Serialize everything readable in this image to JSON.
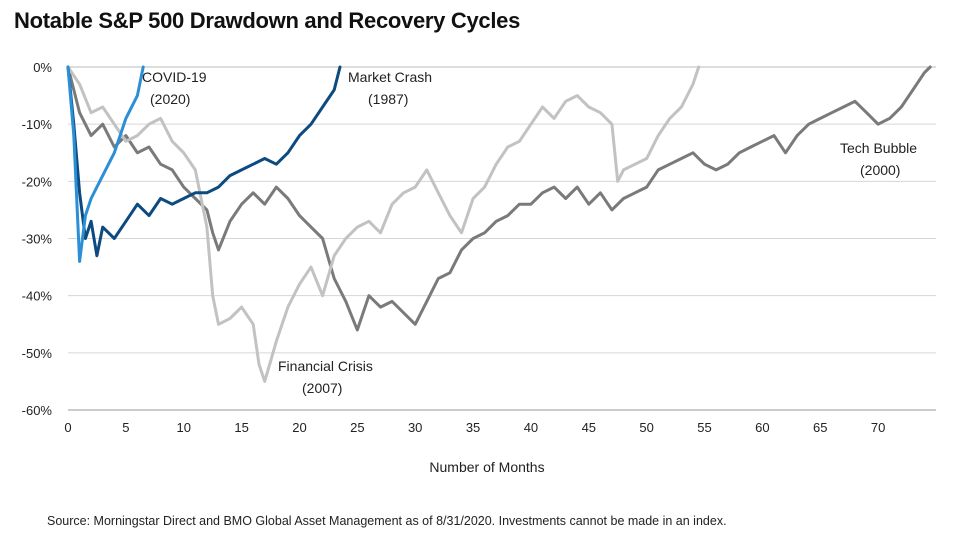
{
  "title": "Notable S&P 500 Drawdown and Recovery Cycles",
  "source": "Source: Morningstar Direct and BMO Global Asset Management as of 8/31/2020. Investments cannot be made in an index.",
  "chart_data": {
    "type": "line",
    "title": "Notable S&P 500 Drawdown and Recovery Cycles",
    "xlabel": "Number of Months",
    "ylabel": "",
    "xlim": [
      0,
      75
    ],
    "ylim": [
      -60,
      0
    ],
    "x_ticks": [
      0,
      5,
      10,
      15,
      20,
      25,
      30,
      35,
      40,
      45,
      50,
      55,
      60,
      65,
      70
    ],
    "y_ticks": [
      0,
      -10,
      -20,
      -30,
      -40,
      -50,
      -60
    ],
    "y_tick_labels": [
      "0%",
      "-10%",
      "-20%",
      "-30%",
      "-40%",
      "-50%",
      "-60%"
    ],
    "grid": "horizontal",
    "series": [
      {
        "name_line1": "Tech Bubble",
        "name_line2": "(2000)",
        "color": "#7a7a7a",
        "points": [
          [
            0,
            0
          ],
          [
            1,
            -8
          ],
          [
            2,
            -12
          ],
          [
            3,
            -10
          ],
          [
            4,
            -14
          ],
          [
            5,
            -12
          ],
          [
            6,
            -15
          ],
          [
            7,
            -14
          ],
          [
            8,
            -17
          ],
          [
            9,
            -18
          ],
          [
            10,
            -21
          ],
          [
            11,
            -23
          ],
          [
            12,
            -25
          ],
          [
            12.5,
            -29
          ],
          [
            13,
            -32
          ],
          [
            14,
            -27
          ],
          [
            15,
            -24
          ],
          [
            16,
            -22
          ],
          [
            17,
            -24
          ],
          [
            18,
            -21
          ],
          [
            19,
            -23
          ],
          [
            20,
            -26
          ],
          [
            21,
            -28
          ],
          [
            22,
            -30
          ],
          [
            23,
            -37
          ],
          [
            24,
            -41
          ],
          [
            25,
            -46
          ],
          [
            26,
            -40
          ],
          [
            27,
            -42
          ],
          [
            28,
            -41
          ],
          [
            29,
            -43
          ],
          [
            30,
            -45
          ],
          [
            31,
            -41
          ],
          [
            32,
            -37
          ],
          [
            33,
            -36
          ],
          [
            34,
            -32
          ],
          [
            35,
            -30
          ],
          [
            36,
            -29
          ],
          [
            37,
            -27
          ],
          [
            38,
            -26
          ],
          [
            39,
            -24
          ],
          [
            40,
            -24
          ],
          [
            41,
            -22
          ],
          [
            42,
            -21
          ],
          [
            43,
            -23
          ],
          [
            44,
            -21
          ],
          [
            45,
            -24
          ],
          [
            46,
            -22
          ],
          [
            47,
            -25
          ],
          [
            48,
            -23
          ],
          [
            49,
            -22
          ],
          [
            50,
            -21
          ],
          [
            51,
            -18
          ],
          [
            52,
            -17
          ],
          [
            53,
            -16
          ],
          [
            54,
            -15
          ],
          [
            55,
            -17
          ],
          [
            56,
            -18
          ],
          [
            57,
            -17
          ],
          [
            58,
            -15
          ],
          [
            59,
            -14
          ],
          [
            60,
            -13
          ],
          [
            61,
            -12
          ],
          [
            62,
            -15
          ],
          [
            63,
            -12
          ],
          [
            64,
            -10
          ],
          [
            65,
            -9
          ],
          [
            66,
            -8
          ],
          [
            67,
            -7
          ],
          [
            68,
            -6
          ],
          [
            69,
            -8
          ],
          [
            70,
            -10
          ],
          [
            71,
            -9
          ],
          [
            72,
            -7
          ],
          [
            73,
            -4
          ],
          [
            74,
            -1
          ],
          [
            74.5,
            0
          ]
        ]
      },
      {
        "name_line1": "Financial Crisis",
        "name_line2": "(2007)",
        "color": "#c2c2c2",
        "points": [
          [
            0,
            0
          ],
          [
            1,
            -3
          ],
          [
            2,
            -8
          ],
          [
            3,
            -7
          ],
          [
            4,
            -10
          ],
          [
            5,
            -13
          ],
          [
            6,
            -12
          ],
          [
            7,
            -10
          ],
          [
            8,
            -9
          ],
          [
            9,
            -13
          ],
          [
            10,
            -15
          ],
          [
            11,
            -18
          ],
          [
            12,
            -28
          ],
          [
            12.5,
            -40
          ],
          [
            13,
            -45
          ],
          [
            14,
            -44
          ],
          [
            15,
            -42
          ],
          [
            16,
            -45
          ],
          [
            16.5,
            -52
          ],
          [
            17,
            -55
          ],
          [
            18,
            -48
          ],
          [
            19,
            -42
          ],
          [
            20,
            -38
          ],
          [
            21,
            -35
          ],
          [
            22,
            -40
          ],
          [
            23,
            -33
          ],
          [
            24,
            -30
          ],
          [
            25,
            -28
          ],
          [
            26,
            -27
          ],
          [
            27,
            -29
          ],
          [
            28,
            -24
          ],
          [
            29,
            -22
          ],
          [
            30,
            -21
          ],
          [
            31,
            -18
          ],
          [
            32,
            -22
          ],
          [
            33,
            -26
          ],
          [
            34,
            -29
          ],
          [
            35,
            -23
          ],
          [
            36,
            -21
          ],
          [
            37,
            -17
          ],
          [
            38,
            -14
          ],
          [
            39,
            -13
          ],
          [
            40,
            -10
          ],
          [
            41,
            -7
          ],
          [
            42,
            -9
          ],
          [
            43,
            -6
          ],
          [
            44,
            -5
          ],
          [
            45,
            -7
          ],
          [
            46,
            -8
          ],
          [
            47,
            -10
          ],
          [
            47.5,
            -20
          ],
          [
            48,
            -18
          ],
          [
            49,
            -17
          ],
          [
            50,
            -16
          ],
          [
            51,
            -12
          ],
          [
            52,
            -9
          ],
          [
            53,
            -7
          ],
          [
            54,
            -3
          ],
          [
            54.5,
            0
          ]
        ]
      },
      {
        "name_line1": "Market Crash",
        "name_line2": "(1987)",
        "color": "#0c4a80",
        "points": [
          [
            0,
            0
          ],
          [
            0.5,
            -10
          ],
          [
            1,
            -22
          ],
          [
            1.5,
            -30
          ],
          [
            2,
            -27
          ],
          [
            2.5,
            -33
          ],
          [
            3,
            -28
          ],
          [
            4,
            -30
          ],
          [
            5,
            -27
          ],
          [
            6,
            -24
          ],
          [
            7,
            -26
          ],
          [
            8,
            -23
          ],
          [
            9,
            -24
          ],
          [
            10,
            -23
          ],
          [
            11,
            -22
          ],
          [
            12,
            -22
          ],
          [
            13,
            -21
          ],
          [
            14,
            -19
          ],
          [
            15,
            -18
          ],
          [
            16,
            -17
          ],
          [
            17,
            -16
          ],
          [
            18,
            -17
          ],
          [
            19,
            -15
          ],
          [
            20,
            -12
          ],
          [
            21,
            -10
          ],
          [
            22,
            -7
          ],
          [
            23,
            -4
          ],
          [
            23.5,
            0
          ]
        ]
      },
      {
        "name_line1": "COVID-19",
        "name_line2": "(2020)",
        "color": "#2b8fd6",
        "points": [
          [
            0,
            0
          ],
          [
            0.5,
            -12
          ],
          [
            1,
            -34
          ],
          [
            1.5,
            -26
          ],
          [
            2,
            -23
          ],
          [
            3,
            -19
          ],
          [
            4,
            -15
          ],
          [
            5,
            -9
          ],
          [
            6,
            -5
          ],
          [
            6.5,
            0
          ]
        ]
      }
    ]
  }
}
